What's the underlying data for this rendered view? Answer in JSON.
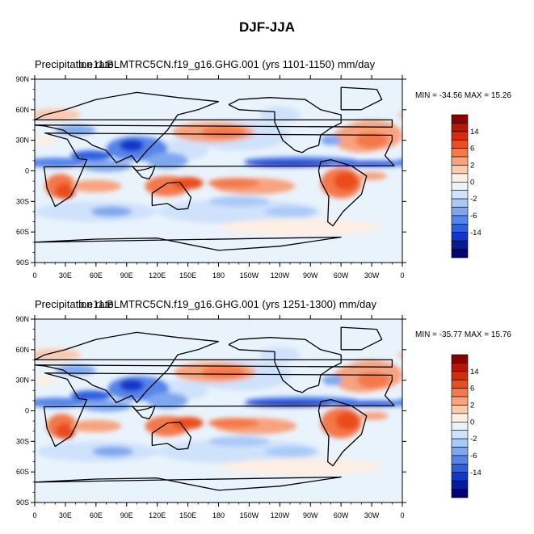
{
  "title": "DJF-JJA",
  "chart_data": [
    {
      "type": "heatmap",
      "variable": "Precipitation rate",
      "case": "b.e11.BLMTRC5CN.f19_g16.GHG.001 (yrs 1101-1150)",
      "units": "mm/day",
      "min_max_label": "MIN = -34.56 MAX =  15.26",
      "min": -34.56,
      "max": 15.26,
      "xticks": [
        "0",
        "30E",
        "60E",
        "90E",
        "120E",
        "150E",
        "180",
        "150W",
        "120W",
        "90W",
        "60W",
        "30W",
        "0"
      ],
      "yticks": [
        "90N",
        "60N",
        "30N",
        "0",
        "30S",
        "60S",
        "90S"
      ],
      "colorbar_labels": [
        "14",
        "6",
        "2",
        "0",
        "-2",
        "-6",
        "-14"
      ],
      "colorbar_colors": [
        "#8b0000",
        "#b5160a",
        "#d92a0e",
        "#ea4d1f",
        "#f4784a",
        "#f8a37f",
        "#fbc9ae",
        "#feeee3",
        "#e9f3fc",
        "#cfe2fb",
        "#a9c9f7",
        "#7fa7f0",
        "#5585ea",
        "#2d5fe0",
        "#1236c9",
        "#021c9c",
        "#00007a"
      ]
    },
    {
      "type": "heatmap",
      "variable": "Precipitation rate",
      "case": "b.e11.BLMTRC5CN.f19_g16.GHG.001 (yrs 1251-1300)",
      "units": "mm/day",
      "min_max_label": "MIN = -35.77 MAX =  15.76",
      "min": -35.77,
      "max": 15.76,
      "xticks": [
        "0",
        "30E",
        "60E",
        "90E",
        "120E",
        "150E",
        "180",
        "150W",
        "120W",
        "90W",
        "60W",
        "30W",
        "0"
      ],
      "yticks": [
        "90N",
        "60N",
        "30N",
        "0",
        "30S",
        "60S",
        "90S"
      ],
      "colorbar_labels": [
        "14",
        "6",
        "2",
        "0",
        "-2",
        "-6",
        "-14"
      ],
      "colorbar_colors": [
        "#8b0000",
        "#b5160a",
        "#d92a0e",
        "#ea4d1f",
        "#f4784a",
        "#f8a37f",
        "#fbc9ae",
        "#feeee3",
        "#e9f3fc",
        "#cfe2fb",
        "#a9c9f7",
        "#7fa7f0",
        "#5585ea",
        "#2d5fe0",
        "#1236c9",
        "#021c9c",
        "#00007a"
      ]
    }
  ]
}
